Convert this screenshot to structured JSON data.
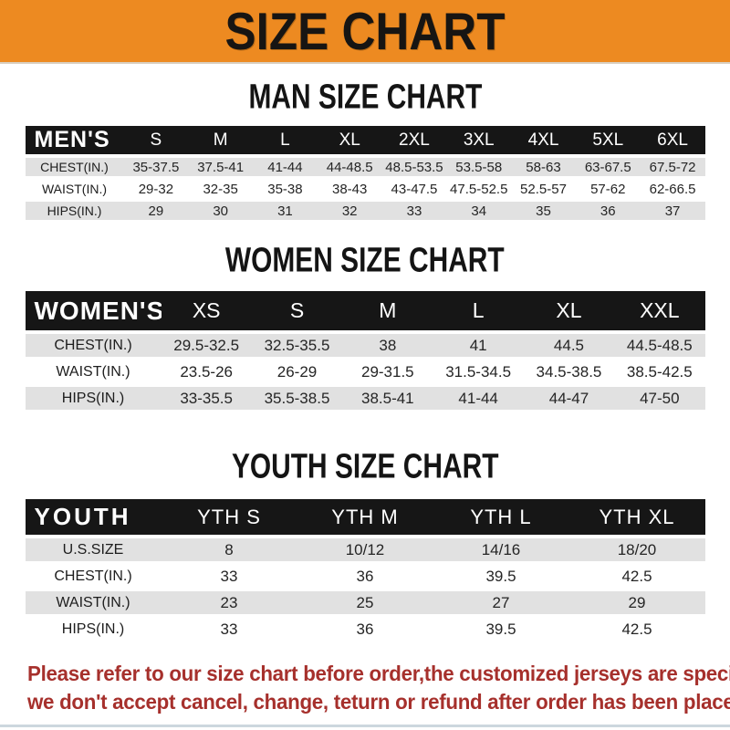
{
  "banner": {
    "title": "SIZE CHART"
  },
  "sections": [
    {
      "key": "man",
      "heading": "MAN SIZE CHART",
      "table": {
        "header_label": "MEN'S",
        "columns": [
          "S",
          "M",
          "L",
          "XL",
          "2XL",
          "3XL",
          "4XL",
          "5XL",
          "6XL"
        ],
        "rows": [
          {
            "label": "CHEST(IN.)",
            "values": [
              "35-37.5",
              "37.5-41",
              "41-44",
              "44-48.5",
              "48.5-53.5",
              "53.5-58",
              "58-63",
              "63-67.5",
              "67.5-72"
            ]
          },
          {
            "label": "WAIST(IN.)",
            "values": [
              "29-32",
              "32-35",
              "35-38",
              "38-43",
              "43-47.5",
              "47.5-52.5",
              "52.5-57",
              "57-62",
              "62-66.5"
            ]
          },
          {
            "label": "HIPS(IN.)",
            "values": [
              "29",
              "30",
              "31",
              "32",
              "33",
              "34",
              "35",
              "36",
              "37"
            ]
          }
        ]
      }
    },
    {
      "key": "women",
      "heading": "WOMEN SIZE CHART",
      "table": {
        "header_label": "WOMEN'S",
        "columns": [
          "XS",
          "S",
          "M",
          "L",
          "XL",
          "XXL"
        ],
        "rows": [
          {
            "label": "CHEST(IN.)",
            "values": [
              "29.5-32.5",
              "32.5-35.5",
              "38",
              "41",
              "44.5",
              "44.5-48.5"
            ]
          },
          {
            "label": "WAIST(IN.)",
            "values": [
              "23.5-26",
              "26-29",
              "29-31.5",
              "31.5-34.5",
              "34.5-38.5",
              "38.5-42.5"
            ]
          },
          {
            "label": "HIPS(IN.)",
            "values": [
              "33-35.5",
              "35.5-38.5",
              "38.5-41",
              "41-44",
              "44-47",
              "47-50"
            ]
          }
        ]
      }
    },
    {
      "key": "youth",
      "heading": "YOUTH SIZE CHART",
      "table": {
        "header_label": "YOUTH",
        "columns": [
          "YTH S",
          "YTH M",
          "YTH L",
          "YTH XL"
        ],
        "rows": [
          {
            "label": "U.S.SIZE",
            "values": [
              "8",
              "10/12",
              "14/16",
              "18/20"
            ]
          },
          {
            "label": "CHEST(IN.)",
            "values": [
              "33",
              "36",
              "39.5",
              "42.5"
            ]
          },
          {
            "label": "WAIST(IN.)",
            "values": [
              "23",
              "25",
              "27",
              "29"
            ]
          },
          {
            "label": "HIPS(IN.)",
            "values": [
              "33",
              "36",
              "39.5",
              "42.5"
            ]
          }
        ]
      }
    }
  ],
  "footer": {
    "line1": "Please refer to our size chart before order,the customized jerseys are special products,",
    "line2": "we don't accept cancel, change, teturn or refund after order has been placed!"
  },
  "colors": {
    "banner_bg": "#ED8A21",
    "banner_text": "#171513",
    "table_header_bg": "#161616",
    "table_header_text": "#FFFFFF",
    "row_gray": "#E1E1E1",
    "row_white": "#FFFFFF",
    "footer_text": "#A6302C",
    "bottom_line": "#CCD7DE"
  }
}
